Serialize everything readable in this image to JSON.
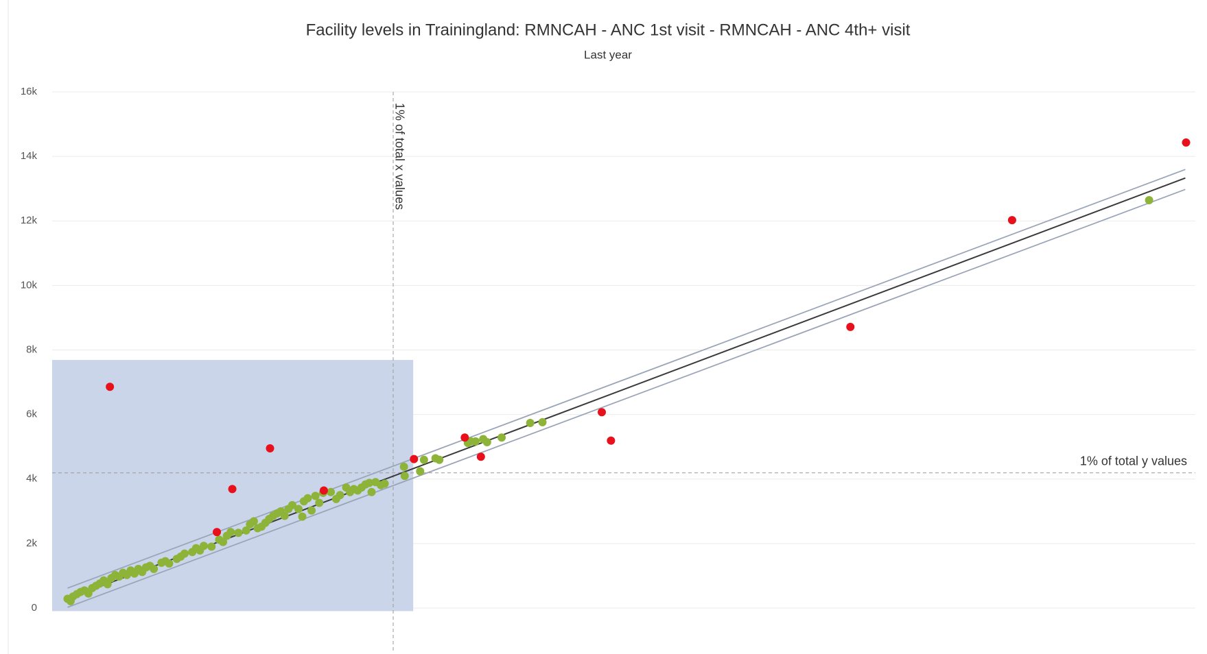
{
  "chart_data": {
    "type": "scatter",
    "title": "Facility levels in Trainingland: RMNCAH - ANC 1st visit - RMNCAH - ANC 4th+ visit",
    "subtitle": "Last year",
    "xlim": [
      0,
      13700
    ],
    "ylim": [
      0,
      16000
    ],
    "yticks": [
      0,
      {
        "value": 2000,
        "label": "2k"
      },
      {
        "value": 4000,
        "label": "4k"
      },
      {
        "value": 6000,
        "label": "6k"
      },
      {
        "value": 8000,
        "label": "8k"
      },
      {
        "value": 10000,
        "label": "10k"
      },
      {
        "value": 12000,
        "label": "12k"
      },
      {
        "value": 14000,
        "label": "14k"
      },
      {
        "value": 16000,
        "label": "16k"
      }
    ],
    "grid": true,
    "highlight": {
      "color": "#cad5ea",
      "x": [
        0,
        4327
      ],
      "y": [
        -95,
        7690
      ]
    },
    "reference_lines": [
      {
        "axis": "x",
        "value": 4087,
        "label": "1% of total x values"
      },
      {
        "axis": "y",
        "value": 4190,
        "label": "1% of total y values"
      }
    ],
    "trend_lines": [
      {
        "color": "#3a3a3a",
        "x": [
          185,
          13580
        ],
        "y": [
          290,
          13330
        ]
      },
      {
        "color": "#9aa6b8",
        "x": [
          185,
          13580
        ],
        "y": [
          619,
          13595
        ]
      },
      {
        "color": "#9aa6b8",
        "x": [
          185,
          13580
        ],
        "y": [
          24,
          12976
        ]
      }
    ],
    "series": [
      {
        "color": "#8db338",
        "x": [
          185,
          221,
          249,
          295,
          341,
          387,
          434,
          480,
          526,
          572,
          618,
          664,
          710,
          756,
          803,
          849,
          895,
          941,
          987,
          1033,
          1079,
          1125,
          1172,
          1218,
          1310,
          1356,
          1402,
          1494,
          1541,
          1587,
          1679,
          1725,
          1771,
          1817,
          1910,
          2002,
          2048,
          2094,
          2140,
          2232,
          2325,
          2371,
          2417,
          2463,
          2509,
          2555,
          2601,
          2648,
          2694,
          2740,
          2786,
          2832,
          2878,
          2952,
          2998,
          3017,
          3063,
          3109,
          3155,
          3201,
          3247,
          3339,
          3404,
          3450,
          3524,
          3570,
          3616,
          3662,
          3708,
          3755,
          3801,
          3828,
          3875,
          3939,
          3985,
          4216,
          4225,
          4410,
          4456,
          4594,
          4640,
          4982,
          5018,
          5074,
          5166,
          5212,
          5387,
          5729,
          5876,
          13146
        ],
        "values": [
          286,
          214,
          357,
          429,
          500,
          548,
          452,
          619,
          690,
          762,
          857,
          738,
          929,
          1024,
          976,
          1095,
          1024,
          1167,
          1071,
          1214,
          1119,
          1262,
          1310,
          1214,
          1405,
          1452,
          1381,
          1524,
          1595,
          1690,
          1738,
          1857,
          1786,
          1929,
          1905,
          2119,
          2048,
          2238,
          2357,
          2333,
          2405,
          2595,
          2690,
          2476,
          2524,
          2643,
          2762,
          2857,
          2929,
          3000,
          2857,
          3071,
          3190,
          3071,
          2833,
          3310,
          3405,
          3024,
          3476,
          3262,
          3571,
          3595,
          3381,
          3500,
          3738,
          3595,
          3690,
          3643,
          3738,
          3833,
          3881,
          3595,
          3905,
          3810,
          3857,
          4381,
          4095,
          4238,
          4595,
          4643,
          4595,
          5119,
          5167,
          5167,
          5238,
          5143,
          5286,
          5738,
          5762,
          12643
        ]
      },
      {
        "color": "#e8101a",
        "x": [
          692,
          2611,
          2159,
          1974,
          3256,
          4336,
          4945,
          5138,
          6587,
          6697,
          9566,
          11504,
          13589
        ],
        "values": [
          6857,
          4952,
          3690,
          2357,
          3643,
          4619,
          5286,
          4690,
          6071,
          5190,
          8714,
          12024,
          14429
        ]
      }
    ]
  }
}
